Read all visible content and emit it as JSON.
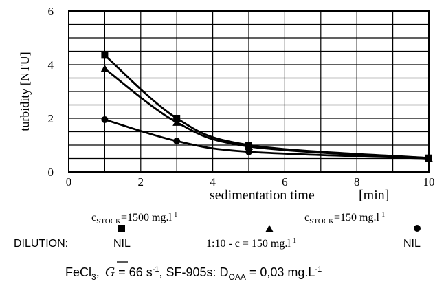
{
  "chart_data": {
    "type": "line",
    "xlabel": "sedimentation time",
    "xunit": "[min]",
    "ylabel": "turbidity  [NTU]",
    "xlim": [
      0,
      10
    ],
    "ylim": [
      0,
      6
    ],
    "xticks": [
      0,
      2,
      4,
      6,
      8,
      10
    ],
    "yticks": [
      0,
      2,
      4,
      6
    ],
    "grid": true,
    "series": [
      {
        "name": "c_STOCK=1500 mg.l-1, NIL",
        "marker": "square",
        "x": [
          1,
          3,
          5,
          10
        ],
        "y": [
          4.35,
          2.0,
          1.0,
          0.52
        ]
      },
      {
        "name": "1:10 - c = 150 mg.l-1",
        "marker": "triangle",
        "x": [
          1,
          3,
          5,
          10
        ],
        "y": [
          3.85,
          1.85,
          0.95,
          0.5
        ]
      },
      {
        "name": "c_STOCK=150 mg.l-1, NIL",
        "marker": "circle",
        "x": [
          1,
          3,
          5,
          10
        ],
        "y": [
          1.95,
          1.15,
          0.75,
          0.5
        ]
      }
    ]
  },
  "legend": {
    "stock1": {
      "c": "c",
      "sub": "STOCK",
      "value": "=1500 mg.l",
      "sup": "-1"
    },
    "stock2": {
      "c": "c",
      "sub": "STOCK",
      "value": "=150 mg.l",
      "sup": "-1"
    },
    "dilution_label": "DILUTION:",
    "dilution_nil1": "NIL",
    "dilution_mid": "1:10 - c = 150 mg.l",
    "dilution_mid_sup": "-1",
    "dilution_nil2": "NIL"
  },
  "caption": {
    "fecl": "FeCl",
    "fecl_sub": "3",
    "sep1": ",",
    "g": "G",
    "g_rest": " = 66 s",
    "g_sup": "-1",
    "sf": ", SF-905s: D",
    "d_sub": "OAA",
    "d_rest": " = 0,03 mg.L",
    "d_sup": "-1"
  }
}
